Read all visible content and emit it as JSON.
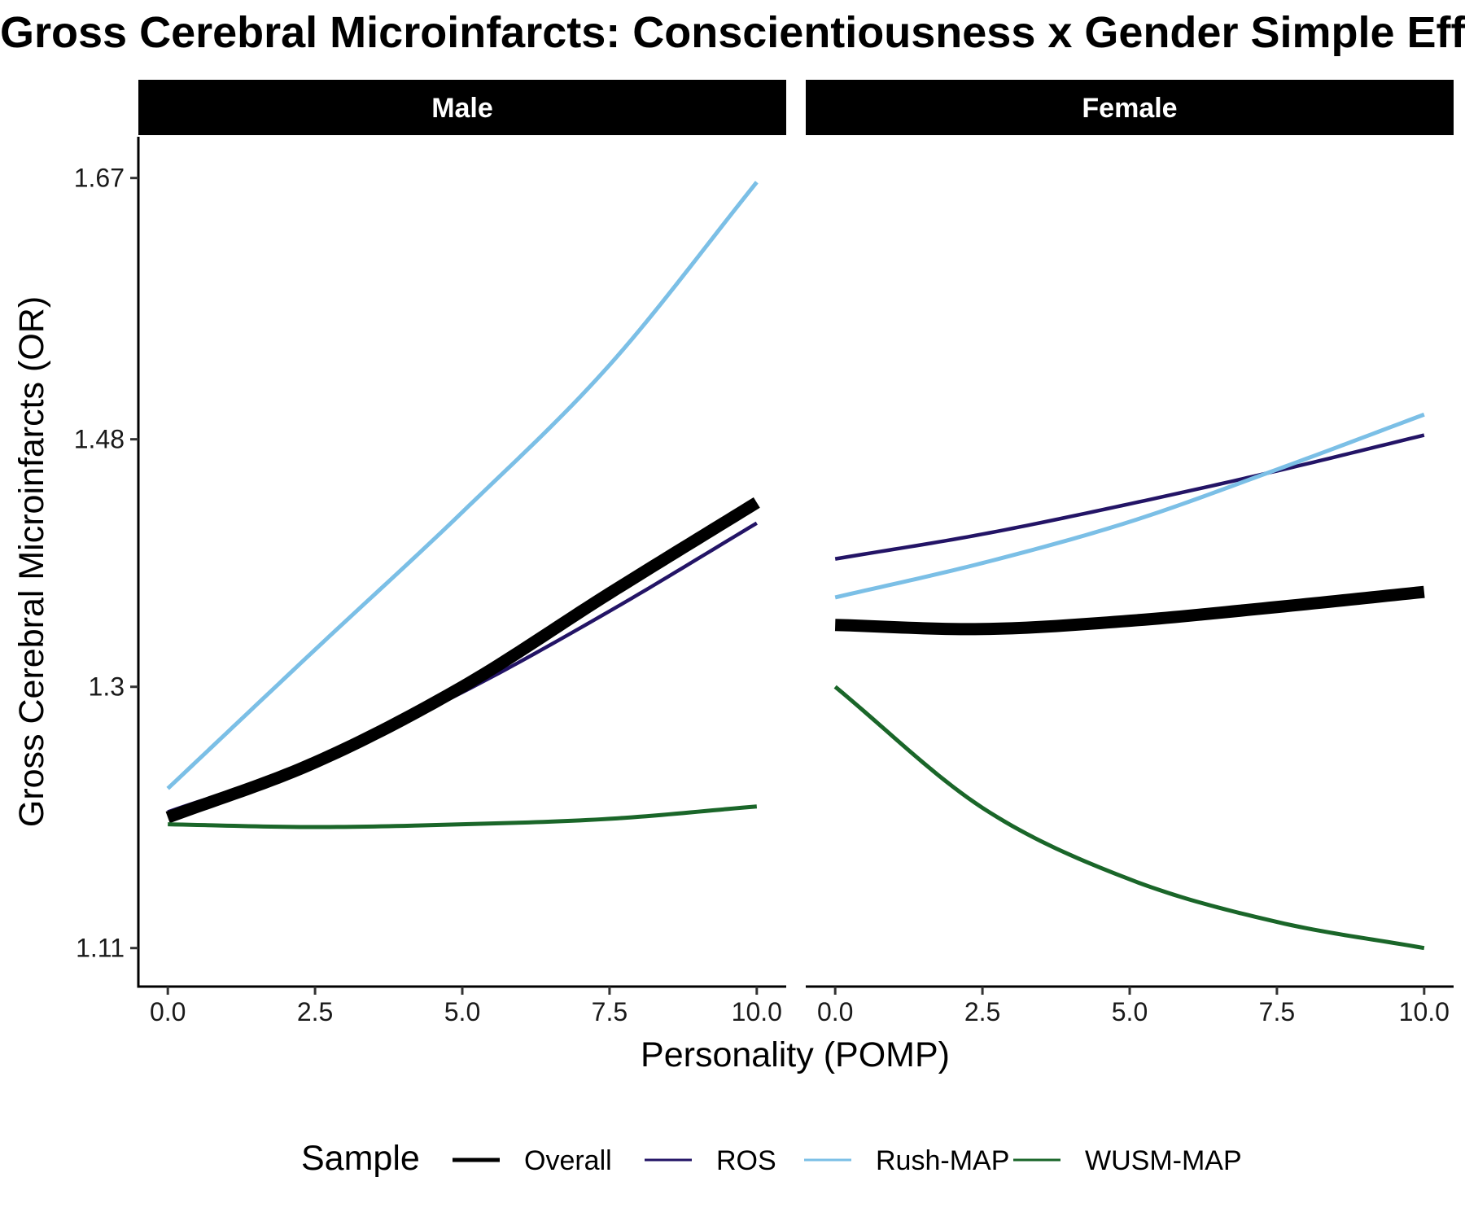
{
  "chart_data": {
    "type": "line",
    "title": "Gross Cerebral Microinfarcts: Conscientiousness x Gender Simple Effects",
    "xlabel": "Personality (POMP)",
    "ylabel": "Gross Cerebral Microinfarcts (OR)",
    "xlim": [
      -0.5,
      10.5
    ],
    "ylim": [
      1.082,
      1.7
    ],
    "x_ticks": [
      0,
      2.5,
      5,
      7.5,
      10
    ],
    "x_tick_labels": [
      "0.0",
      "2.5",
      "5.0",
      "7.5",
      "10.0"
    ],
    "y_ticks": [
      1.11,
      1.3,
      1.48,
      1.67
    ],
    "y_tick_labels": [
      "1.11",
      "1.3",
      "1.48",
      "1.67"
    ],
    "grid": false,
    "legend": {
      "title": "Sample",
      "position": "bottom",
      "entries": [
        {
          "label": "Overall",
          "color": "#000000",
          "width": 5
        },
        {
          "label": "ROS",
          "color": "#231466",
          "width": 3
        },
        {
          "label": "Rush-MAP",
          "color": "#7bbfe6",
          "width": 3
        },
        {
          "label": "WUSM-MAP",
          "color": "#1a6629",
          "width": 3
        }
      ]
    },
    "x": [
      0,
      2.5,
      5,
      7.5,
      10
    ],
    "panels": [
      {
        "label": "Male",
        "series": [
          {
            "name": "Rush-MAP",
            "color": "#7bbfe6",
            "width": 5,
            "values": [
              1.226,
              1.327,
              1.427,
              1.534,
              1.667
            ]
          },
          {
            "name": "ROS",
            "color": "#231466",
            "width": 4.5,
            "values": [
              1.209,
              1.246,
              1.296,
              1.355,
              1.419
            ]
          },
          {
            "name": "Overall",
            "color": "#000000",
            "width": 15,
            "values": [
              1.205,
              1.245,
              1.3,
              1.368,
              1.434
            ]
          },
          {
            "name": "WUSM-MAP",
            "color": "#1a6629",
            "width": 5,
            "values": [
              1.2,
              1.198,
              1.2,
              1.204,
              1.213
            ]
          }
        ]
      },
      {
        "label": "Female",
        "series": [
          {
            "name": "ROS",
            "color": "#231466",
            "width": 4.5,
            "values": [
              1.393,
              1.411,
              1.433,
              1.457,
              1.483
            ]
          },
          {
            "name": "Rush-MAP",
            "color": "#7bbfe6",
            "width": 5,
            "values": [
              1.365,
              1.39,
              1.42,
              1.458,
              1.498
            ]
          },
          {
            "name": "Overall",
            "color": "#000000",
            "width": 15,
            "values": [
              1.345,
              1.342,
              1.348,
              1.358,
              1.369
            ]
          },
          {
            "name": "WUSM-MAP",
            "color": "#1a6629",
            "width": 5,
            "values": [
              1.3,
              1.212,
              1.16,
              1.129,
              1.11
            ]
          }
        ]
      }
    ]
  }
}
